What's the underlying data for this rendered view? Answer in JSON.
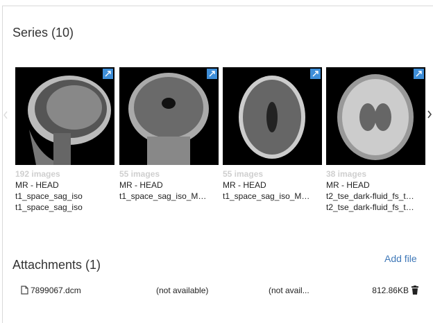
{
  "series_section": {
    "title": "Series (10)",
    "items": [
      {
        "image_count": "192 images",
        "modality": "MR - HEAD",
        "description": "t1_space_sag_iso",
        "protocol": "t1_space_sag_iso"
      },
      {
        "image_count": "55 images",
        "modality": "MR - HEAD",
        "description": "t1_space_sag_iso_M…",
        "protocol": null
      },
      {
        "image_count": "55 images",
        "modality": "MR - HEAD",
        "description": "t1_space_sag_iso_M…",
        "protocol": null
      },
      {
        "image_count": "38 images",
        "modality": "MR - HEAD",
        "description": "t2_tse_dark-fluid_fs_t…",
        "protocol": "t2_tse_dark-fluid_fs_t…"
      }
    ]
  },
  "attachments_section": {
    "title": "Attachments (1)",
    "add_file": "Add file",
    "files": [
      {
        "name": "7899067.dcm",
        "created": "(not available)",
        "modified": "(not avail...",
        "size": "812.86KB"
      }
    ]
  }
}
